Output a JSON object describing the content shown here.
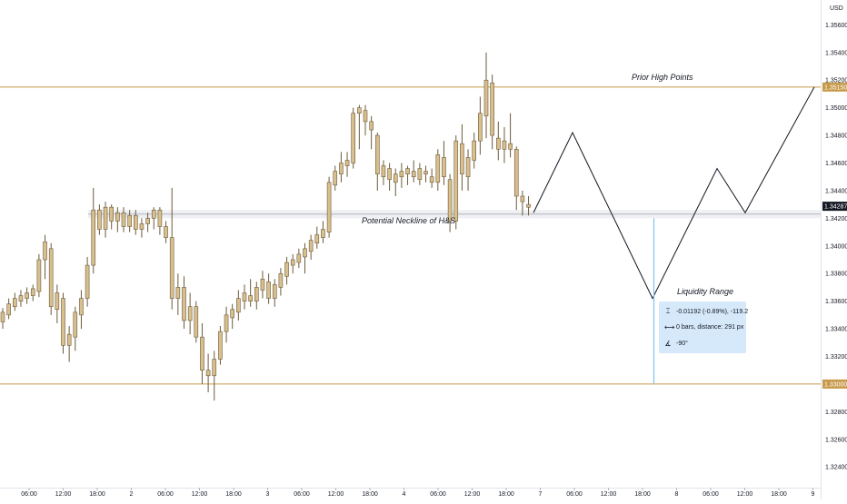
{
  "chart_data": {
    "type": "candlestick",
    "currency": "USD",
    "y_ticks": [
      "1.35600",
      "1.35400",
      "1.35200",
      "1.35000",
      "1.34800",
      "1.34600",
      "1.34400",
      "1.34200",
      "1.34000",
      "1.33800",
      "1.33600",
      "1.33400",
      "1.33200",
      "1.32800",
      "1.32600",
      "1.32400"
    ],
    "y_tick_values": [
      1.356,
      1.354,
      1.352,
      1.35,
      1.348,
      1.346,
      1.344,
      1.342,
      1.34,
      1.338,
      1.336,
      1.334,
      1.332,
      1.328,
      1.326,
      1.324
    ],
    "ylim": [
      1.3225,
      1.3578
    ],
    "x_ticks": [
      "06:00",
      "12:00",
      "18:00",
      "2",
      "06:00",
      "12:00",
      "18:00",
      "3",
      "06:00",
      "12:00",
      "18:00",
      "4",
      "06:00",
      "12:00",
      "18:00",
      "7",
      "06:00",
      "12:00",
      "18:00",
      "8",
      "06:00",
      "12:00",
      "18:00",
      "9"
    ],
    "price_tags": [
      {
        "label": "1.35150",
        "value": 1.3515,
        "color": "#c79a4a"
      },
      {
        "label": "1.34287",
        "value": 1.34287,
        "color": "#131722"
      },
      {
        "label": "1.33000",
        "value": 1.33,
        "color": "#c79a4a"
      }
    ],
    "levels": [
      {
        "name": "Prior High Points",
        "value": 1.3515,
        "color": "#c79a4a"
      },
      {
        "name": "Potential Neckline of H&S",
        "value": 1.3423,
        "color": "#b2b5be"
      },
      {
        "name": "",
        "value": 1.33,
        "color": "#c79a4a"
      }
    ],
    "candle_colors": {
      "up": "#d8bf8e",
      "down": "#d8bf8e",
      "border": "#6d5a3a"
    },
    "candles": [
      [
        1.3345,
        1.3355,
        1.334,
        1.3352
      ],
      [
        1.335,
        1.3362,
        1.3347,
        1.3358
      ],
      [
        1.3356,
        1.3366,
        1.3353,
        1.3362
      ],
      [
        1.336,
        1.3368,
        1.3356,
        1.3364
      ],
      [
        1.3362,
        1.337,
        1.3358,
        1.3366
      ],
      [
        1.3364,
        1.3372,
        1.336,
        1.3369
      ],
      [
        1.3367,
        1.3394,
        1.3363,
        1.339
      ],
      [
        1.339,
        1.3408,
        1.3376,
        1.3403
      ],
      [
        1.3398,
        1.3402,
        1.335,
        1.3356
      ],
      [
        1.3354,
        1.3372,
        1.3344,
        1.3366
      ],
      [
        1.3362,
        1.3366,
        1.3322,
        1.3328
      ],
      [
        1.3328,
        1.3342,
        1.3316,
        1.3336
      ],
      [
        1.3334,
        1.3356,
        1.3324,
        1.3352
      ],
      [
        1.335,
        1.3368,
        1.334,
        1.3362
      ],
      [
        1.3362,
        1.3392,
        1.3356,
        1.3386
      ],
      [
        1.3386,
        1.3442,
        1.338,
        1.3426
      ],
      [
        1.3426,
        1.343,
        1.3408,
        1.3412
      ],
      [
        1.3412,
        1.3432,
        1.3406,
        1.3428
      ],
      [
        1.3428,
        1.343,
        1.3412,
        1.3418
      ],
      [
        1.3418,
        1.3428,
        1.341,
        1.3424
      ],
      [
        1.3424,
        1.3428,
        1.341,
        1.3414
      ],
      [
        1.3414,
        1.3426,
        1.341,
        1.3422
      ],
      [
        1.3422,
        1.3426,
        1.3408,
        1.3412
      ],
      [
        1.3412,
        1.342,
        1.3406,
        1.3416
      ],
      [
        1.3416,
        1.3424,
        1.341,
        1.342
      ],
      [
        1.342,
        1.3428,
        1.3412,
        1.3426
      ],
      [
        1.3426,
        1.3428,
        1.3408,
        1.3414
      ],
      [
        1.3414,
        1.3418,
        1.3402,
        1.3406
      ],
      [
        1.3406,
        1.3442,
        1.3354,
        1.3362
      ],
      [
        1.3362,
        1.338,
        1.335,
        1.337
      ],
      [
        1.337,
        1.3378,
        1.334,
        1.3346
      ],
      [
        1.3346,
        1.3366,
        1.3336,
        1.3356
      ],
      [
        1.3356,
        1.336,
        1.333,
        1.3334
      ],
      [
        1.3334,
        1.3344,
        1.33,
        1.331
      ],
      [
        1.331,
        1.3322,
        1.3294,
        1.3306
      ],
      [
        1.3306,
        1.3324,
        1.3288,
        1.3318
      ],
      [
        1.3318,
        1.3342,
        1.3314,
        1.3338
      ],
      [
        1.3338,
        1.3356,
        1.333,
        1.335
      ],
      [
        1.3348,
        1.3358,
        1.334,
        1.3354
      ],
      [
        1.3352,
        1.3368,
        1.3346,
        1.3362
      ],
      [
        1.336,
        1.3372,
        1.3354,
        1.3366
      ],
      [
        1.3364,
        1.3376,
        1.3356,
        1.336
      ],
      [
        1.336,
        1.3374,
        1.3354,
        1.337
      ],
      [
        1.3368,
        1.3382,
        1.3362,
        1.3376
      ],
      [
        1.3374,
        1.338,
        1.3358,
        1.3362
      ],
      [
        1.3362,
        1.3376,
        1.3356,
        1.3372
      ],
      [
        1.337,
        1.3384,
        1.3364,
        1.338
      ],
      [
        1.3378,
        1.3392,
        1.3372,
        1.3388
      ],
      [
        1.3386,
        1.3394,
        1.338,
        1.339
      ],
      [
        1.3388,
        1.3398,
        1.3384,
        1.3394
      ],
      [
        1.3392,
        1.3402,
        1.338,
        1.3398
      ],
      [
        1.3396,
        1.3408,
        1.339,
        1.3404
      ],
      [
        1.3402,
        1.3414,
        1.3398,
        1.3408
      ],
      [
        1.3406,
        1.3418,
        1.3402,
        1.3412
      ],
      [
        1.341,
        1.345,
        1.3406,
        1.3446
      ],
      [
        1.3444,
        1.3458,
        1.344,
        1.3454
      ],
      [
        1.3452,
        1.3468,
        1.3446,
        1.346
      ],
      [
        1.3458,
        1.3468,
        1.345,
        1.3462
      ],
      [
        1.346,
        1.35,
        1.3456,
        1.3496
      ],
      [
        1.3496,
        1.3502,
        1.347,
        1.35
      ],
      [
        1.3498,
        1.3502,
        1.348,
        1.349
      ],
      [
        1.349,
        1.3494,
        1.347,
        1.3484
      ],
      [
        1.348,
        1.3482,
        1.344,
        1.3452
      ],
      [
        1.345,
        1.3462,
        1.3444,
        1.3458
      ],
      [
        1.3456,
        1.346,
        1.344,
        1.3448
      ],
      [
        1.3446,
        1.3456,
        1.3436,
        1.3452
      ],
      [
        1.345,
        1.346,
        1.3442,
        1.3454
      ],
      [
        1.3452,
        1.3458,
        1.3444,
        1.3456
      ],
      [
        1.3454,
        1.3462,
        1.3446,
        1.345
      ],
      [
        1.3448,
        1.346,
        1.3444,
        1.3456
      ],
      [
        1.3454,
        1.3458,
        1.3446,
        1.3452
      ],
      [
        1.345,
        1.3456,
        1.3442,
        1.3446
      ],
      [
        1.3446,
        1.347,
        1.344,
        1.3466
      ],
      [
        1.3464,
        1.3476,
        1.3444,
        1.345
      ],
      [
        1.3448,
        1.3452,
        1.341,
        1.3418
      ],
      [
        1.3418,
        1.348,
        1.3412,
        1.3476
      ],
      [
        1.3474,
        1.3488,
        1.344,
        1.3452
      ],
      [
        1.345,
        1.347,
        1.344,
        1.3464
      ],
      [
        1.3462,
        1.3482,
        1.3456,
        1.3476
      ],
      [
        1.3476,
        1.3508,
        1.3466,
        1.3496
      ],
      [
        1.3494,
        1.354,
        1.3478,
        1.352
      ],
      [
        1.3518,
        1.3524,
        1.347,
        1.348
      ],
      [
        1.3478,
        1.349,
        1.3462,
        1.347
      ],
      [
        1.347,
        1.3486,
        1.346,
        1.3476
      ],
      [
        1.3474,
        1.3496,
        1.3464,
        1.347
      ],
      [
        1.347,
        1.3472,
        1.3426,
        1.3436
      ],
      [
        1.3436,
        1.344,
        1.3422,
        1.3432
      ],
      [
        1.343,
        1.3436,
        1.3422,
        1.3428
      ]
    ],
    "candle_start_index": 0,
    "projection_path": [
      [
        1.3424,
        0
      ],
      [
        1.3482,
        1
      ],
      [
        1.3362,
        2
      ],
      [
        1.3456,
        3
      ],
      [
        1.3424,
        4
      ],
      [
        1.3515,
        5
      ]
    ],
    "measure": {
      "title": "Liquidity Range",
      "line1": "-0.01192 (-0.89%), -119.2",
      "line2": "0 bars, distance: 291 px",
      "line3": "-90°",
      "top_value": 1.342,
      "bottom_value": 1.33
    }
  }
}
